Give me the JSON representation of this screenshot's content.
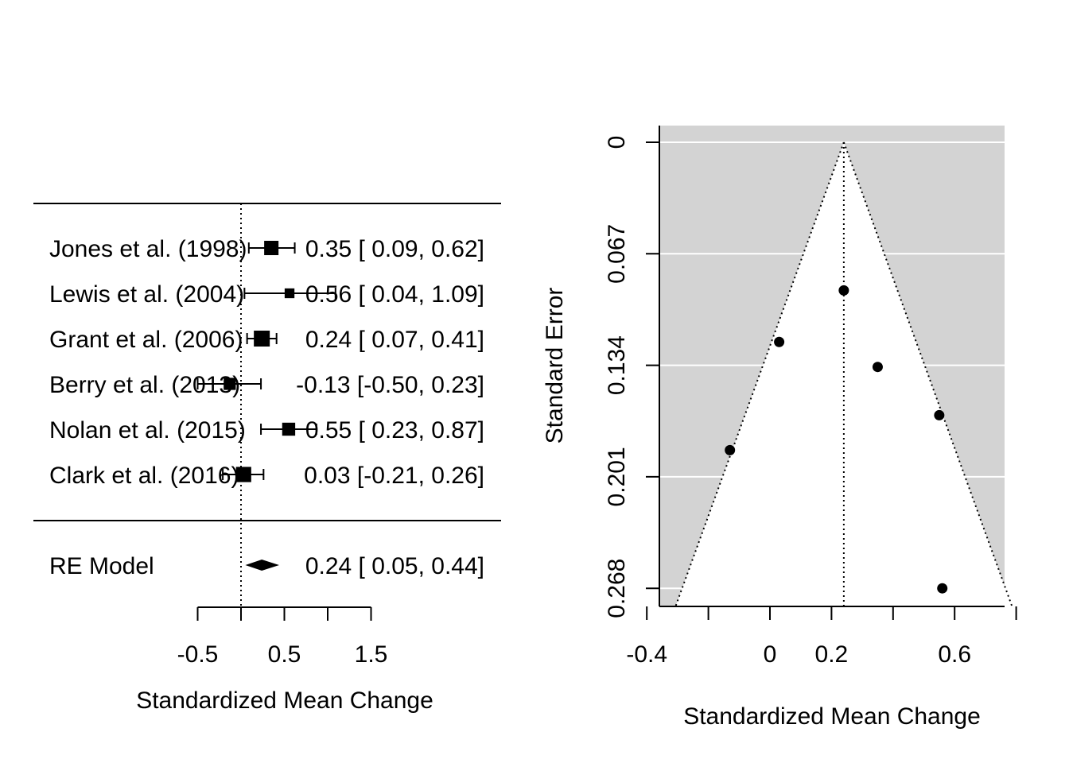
{
  "chart_data": [
    {
      "type": "forest",
      "xlabel": "Standardized Mean Change",
      "xticks": [
        -0.5,
        0,
        0.5,
        1,
        1.5
      ],
      "xtick_labels": [
        "-0.5",
        "",
        "0.5",
        "",
        "1.5"
      ],
      "reference_line": 0,
      "studies": [
        {
          "label": "Jones et al. (1998)",
          "estimate": 0.35,
          "ci_lower": 0.09,
          "ci_upper": 0.62,
          "text": "0.35 [ 0.09, 0.62]",
          "weight": 0.86
        },
        {
          "label": "Lewis et al. (2004)",
          "estimate": 0.56,
          "ci_lower": 0.04,
          "ci_upper": 1.09,
          "text": "0.56 [ 0.04, 1.09]",
          "weight": 0.45
        },
        {
          "label": "Grant et al. (2006)",
          "estimate": 0.24,
          "ci_lower": 0.07,
          "ci_upper": 0.41,
          "text": "0.24 [ 0.07, 0.41]",
          "weight": 1.0
        },
        {
          "label": "Berry et al. (2013)",
          "estimate": -0.13,
          "ci_lower": -0.5,
          "ci_upper": 0.23,
          "text": "-0.13 [-0.50, 0.23]",
          "weight": 0.66
        },
        {
          "label": "Nolan et al. (2015)",
          "estimate": 0.55,
          "ci_lower": 0.23,
          "ci_upper": 0.87,
          "text": "0.55 [ 0.23, 0.87]",
          "weight": 0.74
        },
        {
          "label": "Clark et al. (2016)",
          "estimate": 0.03,
          "ci_lower": -0.21,
          "ci_upper": 0.26,
          "text": "0.03 [-0.21, 0.26]",
          "weight": 0.94
        }
      ],
      "summary": {
        "label": "RE Model",
        "estimate": 0.24,
        "ci_lower": 0.05,
        "ci_upper": 0.44,
        "text": "0.24 [ 0.05, 0.44]"
      }
    },
    {
      "type": "funnel",
      "xlabel": "Standardized Mean Change",
      "ylabel": "Standard Error",
      "xlim": [
        -0.45,
        0.86
      ],
      "xticks": [
        -0.4,
        -0.2,
        0,
        0.2,
        0.4,
        0.6,
        0.8
      ],
      "xtick_labels": [
        "-0.4",
        "",
        "0",
        "0.2",
        "",
        "0.6",
        ""
      ],
      "ylim": [
        0,
        0.268
      ],
      "yticks": [
        0,
        0.067,
        0.134,
        0.201,
        0.268
      ],
      "ytick_labels": [
        "0",
        "0.067",
        "0.134",
        "0.201",
        "0.268"
      ],
      "center": 0.24,
      "background": "#d3d3d3",
      "funnel_fill": "#ffffff",
      "points": [
        {
          "x": 0.35,
          "y": 0.135
        },
        {
          "x": 0.56,
          "y": 0.268
        },
        {
          "x": 0.24,
          "y": 0.089
        },
        {
          "x": -0.13,
          "y": 0.185
        },
        {
          "x": 0.55,
          "y": 0.164
        },
        {
          "x": 0.03,
          "y": 0.12
        }
      ]
    }
  ]
}
